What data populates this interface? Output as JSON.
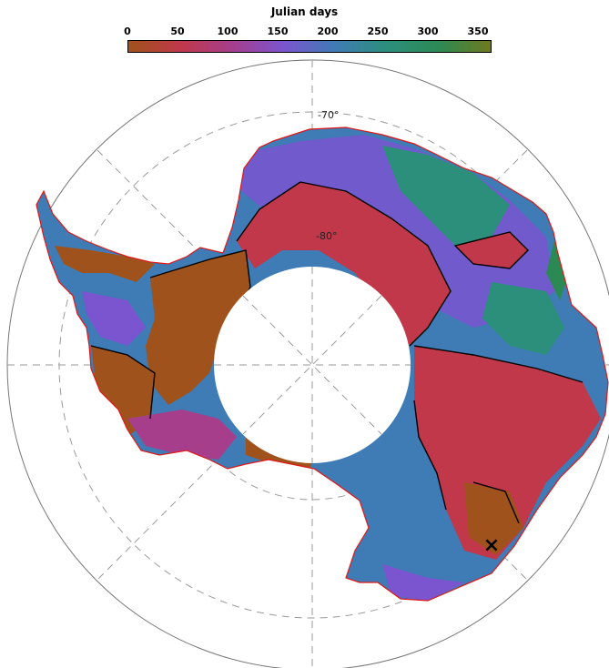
{
  "colorbar": {
    "title": "Julian days",
    "ticks": [
      "0",
      "50",
      "100",
      "150",
      "200",
      "250",
      "300",
      "350"
    ],
    "tick_values": [
      0,
      50,
      100,
      150,
      200,
      250,
      300,
      350
    ],
    "range": [
      0,
      365
    ],
    "colors": [
      "#a0521c",
      "#c0384a",
      "#a63e8c",
      "#7a55cf",
      "#3f7bb4",
      "#2c8f7c",
      "#2b8a54",
      "#6f7a1e"
    ]
  },
  "map": {
    "lat_labels": [
      "-70°",
      "-80°"
    ],
    "lat_circles": [
      -70,
      -80
    ],
    "outline_color": "#e01818",
    "contour_color": "#000000",
    "marker": "×"
  }
}
